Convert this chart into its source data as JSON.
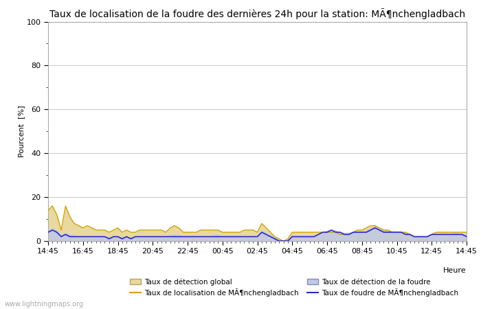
{
  "title": "Taux de localisation de la foudre des dernières 24h pour la station: MÃ¶nchengladbach",
  "ylabel": "Pourcent  [%]",
  "xlabel": "Heure",
  "xtick_labels": [
    "14:45",
    "16:45",
    "18:45",
    "20:45",
    "22:45",
    "00:45",
    "02:45",
    "04:45",
    "06:45",
    "08:45",
    "10:45",
    "12:45",
    "14:45"
  ],
  "ylim": [
    0,
    100
  ],
  "yticks": [
    0,
    20,
    40,
    60,
    80,
    100
  ],
  "ytick_minor": [
    10,
    30,
    50,
    70,
    90
  ],
  "background_color": "#ffffff",
  "plot_bg_color": "#ffffff",
  "grid_color": "#cccccc",
  "watermark": "www.lightningmaps.org",
  "legend_items": [
    {
      "label": "Taux de détection global",
      "type": "fill",
      "color": "#e8d9a0",
      "edge_color": "#c8b860"
    },
    {
      "label": "Taux de localisation de MÃ¶nchengladbach",
      "type": "line",
      "color": "#d4a000"
    },
    {
      "label": "Taux de détection de la foudre",
      "type": "fill",
      "color": "#c0c8e8",
      "edge_color": "#9090c0"
    },
    {
      "label": "Taux de foudre de MÃ¶nchengladbach",
      "type": "line",
      "color": "#2828cc"
    }
  ],
  "global_detection_upper": [
    14,
    16,
    12,
    5,
    16,
    11,
    8,
    7,
    6,
    7,
    6,
    5,
    5,
    5,
    4,
    5,
    6,
    4,
    5,
    4,
    4,
    5,
    5,
    5,
    5,
    5,
    5,
    4,
    6,
    7,
    6,
    4,
    4,
    4,
    4,
    5,
    5,
    5,
    5,
    5,
    4,
    4,
    4,
    4,
    4,
    5,
    5,
    5,
    4,
    8,
    6,
    4,
    2,
    1,
    0,
    1,
    4,
    4,
    4,
    4,
    4,
    4,
    4,
    4,
    4,
    4,
    4,
    3,
    3,
    3,
    4,
    5,
    5,
    6,
    7,
    7,
    6,
    5,
    5,
    4,
    4,
    4,
    4,
    3,
    2,
    2,
    2,
    2,
    3,
    4,
    4,
    4,
    4,
    4,
    4,
    4,
    4
  ],
  "foudre_detection_upper": [
    5,
    6,
    5,
    3,
    4,
    3,
    3,
    2,
    2,
    2,
    2,
    2,
    2,
    2,
    2,
    2,
    2,
    2,
    2,
    2,
    2,
    2,
    2,
    2,
    2,
    2,
    2,
    2,
    3,
    3,
    3,
    2,
    2,
    2,
    2,
    2,
    2,
    2,
    3,
    3,
    2,
    2,
    2,
    2,
    2,
    2,
    2,
    2,
    2,
    5,
    4,
    3,
    2,
    1,
    0,
    1,
    2,
    2,
    2,
    2,
    2,
    2,
    3,
    4,
    5,
    5,
    5,
    4,
    4,
    4,
    4,
    4,
    4,
    5,
    6,
    7,
    6,
    5,
    5,
    4,
    4,
    4,
    4,
    3,
    2,
    2,
    2,
    2,
    3,
    3,
    3,
    3,
    3,
    4,
    4,
    3,
    3
  ],
  "localisation_line": [
    14,
    16,
    12,
    5,
    16,
    11,
    8,
    7,
    6,
    7,
    6,
    5,
    5,
    5,
    4,
    5,
    6,
    4,
    5,
    4,
    4,
    5,
    5,
    5,
    5,
    5,
    5,
    4,
    6,
    7,
    6,
    4,
    4,
    4,
    4,
    5,
    5,
    5,
    5,
    5,
    4,
    4,
    4,
    4,
    4,
    5,
    5,
    5,
    4,
    8,
    6,
    4,
    2,
    1,
    0,
    1,
    4,
    4,
    4,
    4,
    4,
    4,
    4,
    4,
    4,
    4,
    4,
    3,
    3,
    3,
    4,
    5,
    5,
    6,
    7,
    7,
    6,
    5,
    5,
    4,
    4,
    4,
    4,
    3,
    2,
    2,
    2,
    2,
    3,
    4,
    4,
    4,
    4,
    4,
    4,
    4,
    4
  ],
  "foudre_line": [
    4,
    5,
    4,
    2,
    3,
    2,
    2,
    2,
    2,
    2,
    2,
    2,
    2,
    2,
    1,
    2,
    2,
    1,
    2,
    1,
    2,
    2,
    2,
    2,
    2,
    2,
    2,
    2,
    2,
    2,
    2,
    2,
    2,
    2,
    2,
    2,
    2,
    2,
    2,
    2,
    2,
    2,
    2,
    2,
    2,
    2,
    2,
    2,
    2,
    4,
    3,
    2,
    1,
    0,
    0,
    0,
    2,
    2,
    2,
    2,
    2,
    2,
    3,
    4,
    4,
    5,
    4,
    4,
    3,
    3,
    4,
    4,
    4,
    4,
    5,
    6,
    5,
    4,
    4,
    4,
    4,
    4,
    3,
    3,
    2,
    2,
    2,
    2,
    3,
    3,
    3,
    3,
    3,
    3,
    3,
    3,
    2
  ],
  "fill_global_color": "#e8d9a0",
  "fill_foudre_color": "#c0c8e8",
  "line_local_color": "#d4a000",
  "line_foudre_color": "#2828cc",
  "title_fontsize": 10,
  "axis_fontsize": 8,
  "tick_fontsize": 8,
  "watermark_fontsize": 7,
  "legend_fontsize": 7.5
}
